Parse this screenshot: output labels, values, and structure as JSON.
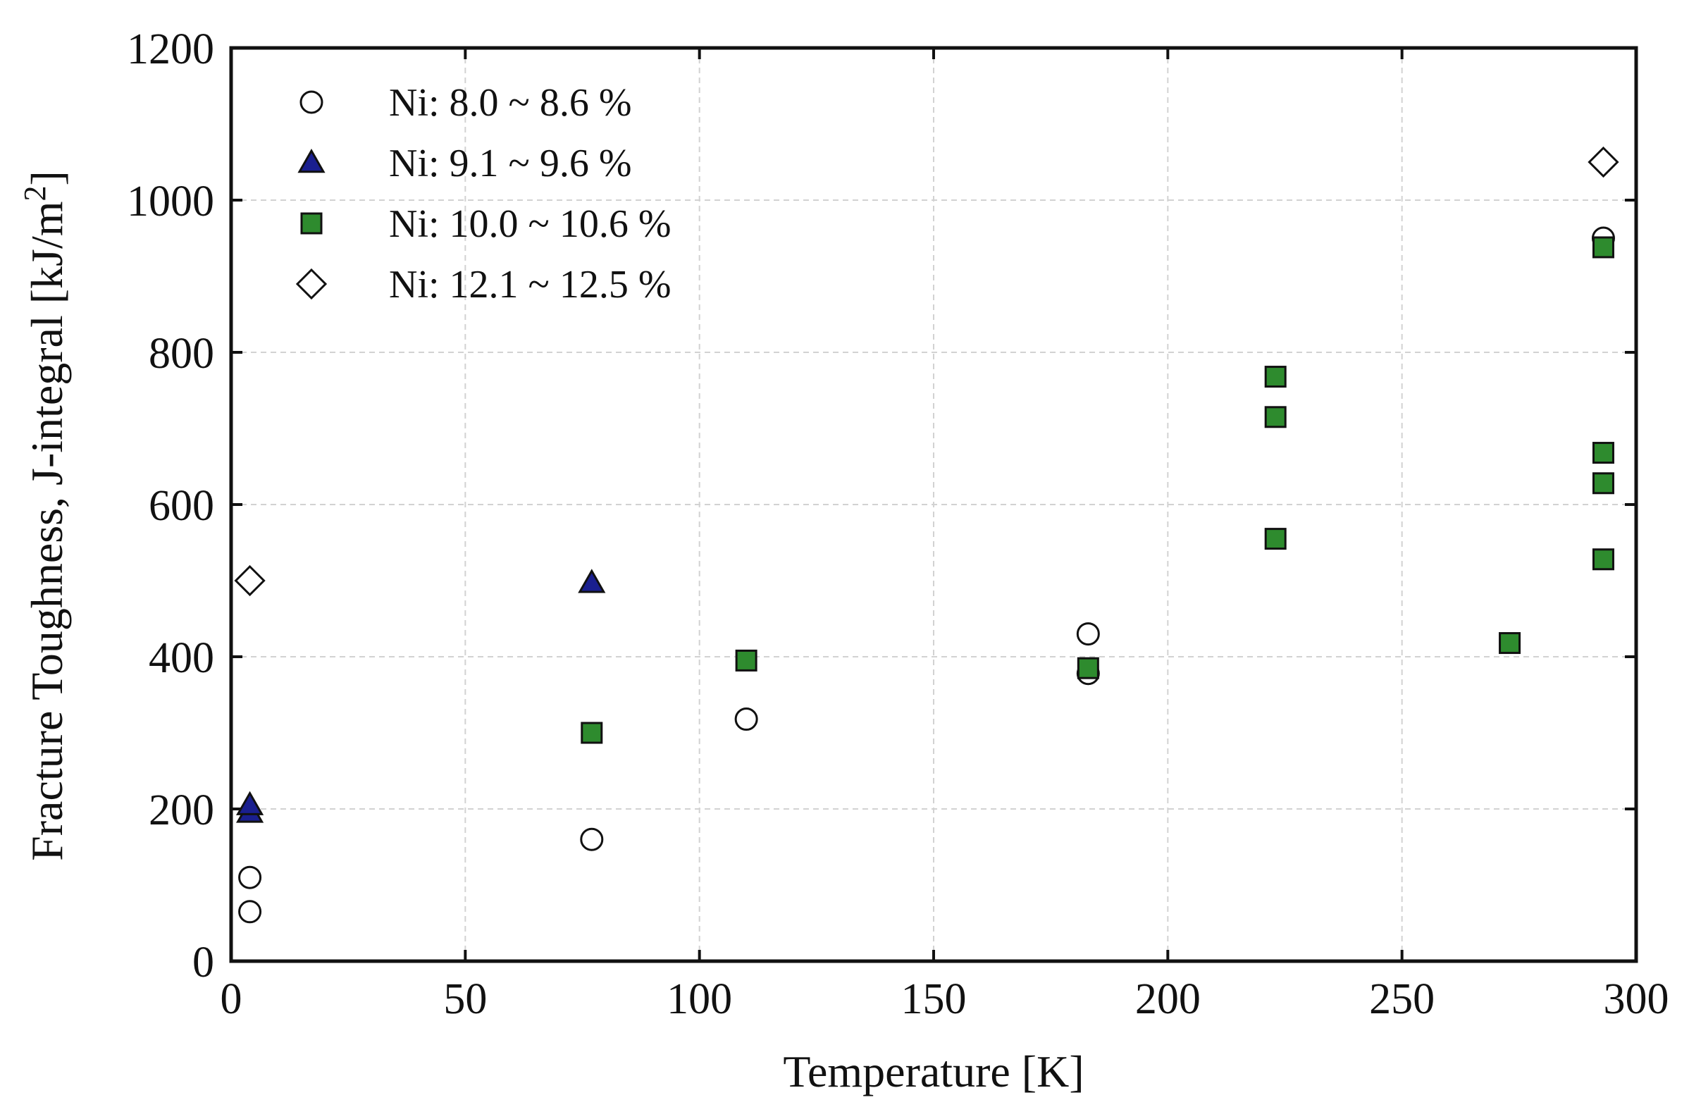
{
  "chart_data": {
    "type": "scatter",
    "title": "",
    "xlabel": "Temperature [K]",
    "ylabel": "Fracture Toughness, J-integral [kJ/m",
    "ylabel_superscript": "2",
    "ylabel_suffix": "]",
    "xlim": [
      0,
      300
    ],
    "ylim": [
      0,
      1200
    ],
    "xticks": [
      0,
      50,
      100,
      150,
      200,
      250,
      300
    ],
    "yticks": [
      0,
      200,
      400,
      600,
      800,
      1000,
      1200
    ],
    "grid": true,
    "legend_position": "top-left",
    "series": [
      {
        "name": "Ni: 8.0 ~ 8.6 %",
        "marker": "circle",
        "fill": "#ffffff",
        "points": [
          [
            4,
            65
          ],
          [
            4,
            110
          ],
          [
            77,
            160
          ],
          [
            110,
            318
          ],
          [
            183,
            378
          ],
          [
            183,
            430
          ],
          [
            293,
            950
          ]
        ]
      },
      {
        "name": "Ni: 9.1 ~ 9.6 %",
        "marker": "triangle",
        "fill": "#1a1f8f",
        "points": [
          [
            4,
            195
          ],
          [
            4,
            205
          ],
          [
            77,
            497
          ]
        ]
      },
      {
        "name": "Ni: 10.0 ~ 10.6 %",
        "marker": "square",
        "fill": "#2e8b2e",
        "points": [
          [
            77,
            300
          ],
          [
            110,
            395
          ],
          [
            183,
            385
          ],
          [
            223,
            555
          ],
          [
            223,
            715
          ],
          [
            223,
            768
          ],
          [
            273,
            418
          ],
          [
            293,
            528
          ],
          [
            293,
            628
          ],
          [
            293,
            668
          ],
          [
            293,
            938
          ]
        ]
      },
      {
        "name": "Ni: 12.1 ~ 12.5 %",
        "marker": "diamond",
        "fill": "#ffffff",
        "points": [
          [
            4,
            500
          ],
          [
            293,
            1050
          ]
        ]
      }
    ]
  }
}
